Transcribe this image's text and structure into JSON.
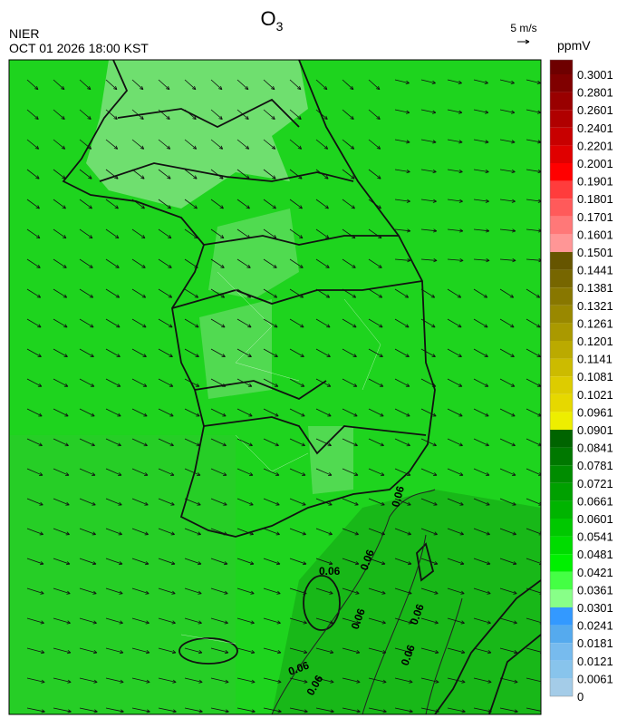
{
  "header": {
    "title": "O",
    "title_subscript": "3",
    "agency": "NIER",
    "datetime": "OCT 01 2026 18:00 KST",
    "wind_scale": "5 m/s",
    "unit": "ppmV"
  },
  "colorbar": {
    "labels": [
      "0.3001",
      "0.2801",
      "0.2601",
      "0.2401",
      "0.2201",
      "0.2001",
      "0.1901",
      "0.1801",
      "0.1701",
      "0.1601",
      "0.1501",
      "0.1441",
      "0.1381",
      "0.1321",
      "0.1261",
      "0.1201",
      "0.1141",
      "0.1081",
      "0.1021",
      "0.0961",
      "0.0901",
      "0.0841",
      "0.0781",
      "0.0721",
      "0.0661",
      "0.0601",
      "0.0541",
      "0.0481",
      "0.0421",
      "0.0361",
      "0.0301",
      "0.0241",
      "0.0181",
      "0.0121",
      "0.0061",
      "0"
    ],
    "colors": [
      "#6e0000",
      "#800000",
      "#990000",
      "#b00000",
      "#c80000",
      "#e00000",
      "#ff0000",
      "#ff3c3c",
      "#ff5a5a",
      "#ff7878",
      "#ff9696",
      "#665500",
      "#776600",
      "#887700",
      "#998800",
      "#aa9900",
      "#bbaa00",
      "#ccbb00",
      "#ddcc00",
      "#e6d800",
      "#eeee00",
      "#006400",
      "#007800",
      "#008c00",
      "#00a000",
      "#00b400",
      "#00c800",
      "#00dc00",
      "#00f000",
      "#44ff44",
      "#88ff88",
      "#3399ff",
      "#55aaee",
      "#77bbee",
      "#88c4ec",
      "#a4cce8"
    ]
  },
  "map": {
    "contour_labels": [
      "0.06",
      "0.06",
      "0.06",
      "0.06",
      "0.06",
      "0.06",
      "0.06",
      "0.06"
    ]
  }
}
